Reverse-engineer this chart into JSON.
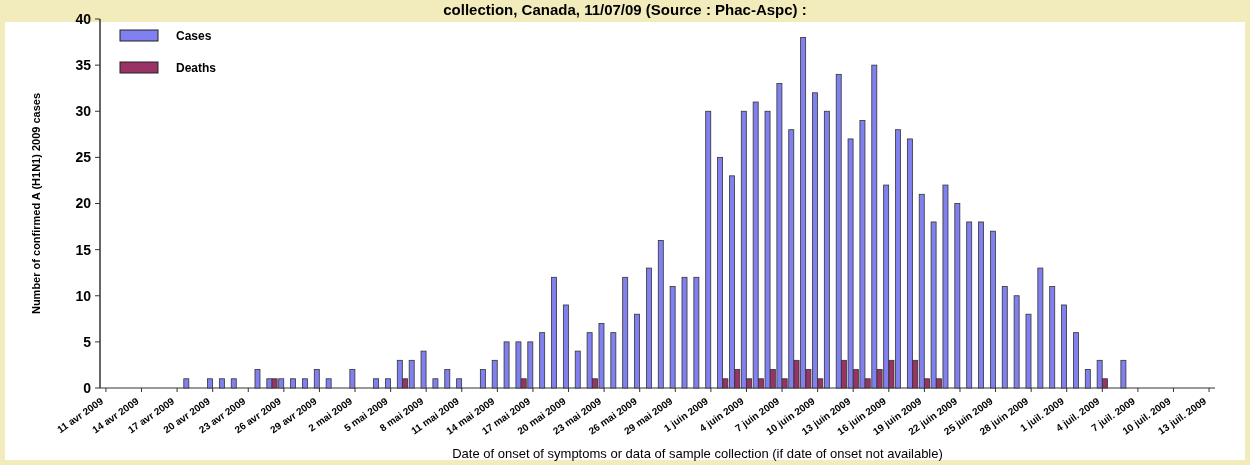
{
  "chart_data": {
    "type": "bar",
    "title": "collection, Canada, 11/07/09  (Source : Phac-Aspc) :",
    "xlabel": "Date of onset of symptoms or data of sample collection (if date of onset not available)",
    "ylabel": "Number of confirmed A (H1N1) 2009 cases",
    "categories": [
      "11 avr 2009",
      null,
      null,
      "14 avr 2009",
      null,
      null,
      "17 avr 2009",
      null,
      null,
      "20 avr 2009",
      null,
      null,
      "23 avr 2009",
      null,
      null,
      "26 avr 2009",
      null,
      null,
      "29 avr 2009",
      null,
      null,
      "2 mai 2009",
      null,
      null,
      "5 mai 2009",
      null,
      null,
      "8 mai 2009",
      null,
      null,
      "11 mai 2009",
      null,
      null,
      "14 mai 2009",
      null,
      null,
      "17 mai 2009",
      null,
      null,
      "20 mai 2009",
      null,
      null,
      "23 mai 2009",
      null,
      null,
      "26 mai 2009",
      null,
      null,
      "29 mai 2009",
      null,
      null,
      "1 juin 2009",
      null,
      null,
      "4 juin 2009",
      null,
      null,
      "7 juin 2009",
      null,
      null,
      "10 juin 2009",
      null,
      null,
      "13 juin 2009",
      null,
      null,
      "16 juin 2009",
      null,
      null,
      "19 juin 2009",
      null,
      null,
      "22 juin 2009",
      null,
      null,
      "25 juin 2009",
      null,
      null,
      "28 juin 2009",
      null,
      null,
      "1 juil. 2009",
      null,
      null,
      "4 juil. 2009",
      null,
      null,
      "7 juil. 2009",
      null,
      null,
      "10 juil. 2009",
      null,
      null,
      "13 juil. 2009"
    ],
    "series": [
      {
        "name": "Cases",
        "color": "#8080f0",
        "values": [
          0,
          0,
          0,
          0,
          0,
          0,
          0,
          1,
          0,
          1,
          1,
          1,
          0,
          2,
          1,
          1,
          1,
          1,
          2,
          1,
          0,
          2,
          0,
          1,
          1,
          3,
          3,
          4,
          1,
          2,
          1,
          0,
          2,
          3,
          5,
          5,
          5,
          6,
          12,
          9,
          4,
          6,
          7,
          6,
          12,
          8,
          13,
          16,
          11,
          12,
          12,
          30,
          25,
          23,
          30,
          31,
          30,
          33,
          28,
          38,
          32,
          30,
          34,
          27,
          29,
          35,
          22,
          28,
          27,
          21,
          18,
          22,
          20,
          18,
          18,
          17,
          11,
          10,
          8,
          13,
          11,
          9,
          6,
          2,
          3,
          0,
          3,
          0,
          0,
          0,
          0,
          0,
          0,
          0
        ]
      },
      {
        "name": "Deaths",
        "color": "#993366",
        "values": [
          0,
          0,
          0,
          0,
          0,
          0,
          0,
          0,
          0,
          0,
          0,
          0,
          0,
          0,
          1,
          0,
          0,
          0,
          0,
          0,
          0,
          0,
          0,
          0,
          0,
          1,
          0,
          0,
          0,
          0,
          0,
          0,
          0,
          0,
          0,
          1,
          0,
          0,
          0,
          0,
          0,
          1,
          0,
          0,
          0,
          0,
          0,
          0,
          0,
          0,
          0,
          0,
          1,
          2,
          1,
          1,
          2,
          1,
          3,
          2,
          1,
          0,
          3,
          2,
          1,
          2,
          3,
          0,
          3,
          1,
          1,
          0,
          0,
          0,
          0,
          0,
          0,
          0,
          0,
          0,
          0,
          0,
          0,
          0,
          1,
          0,
          0,
          0,
          0,
          0,
          0,
          0,
          0,
          0
        ]
      }
    ],
    "ylim": [
      0,
      40
    ],
    "yticks": [
      0,
      5,
      10,
      15,
      20,
      25,
      30,
      35,
      40
    ],
    "legend": "top left"
  }
}
